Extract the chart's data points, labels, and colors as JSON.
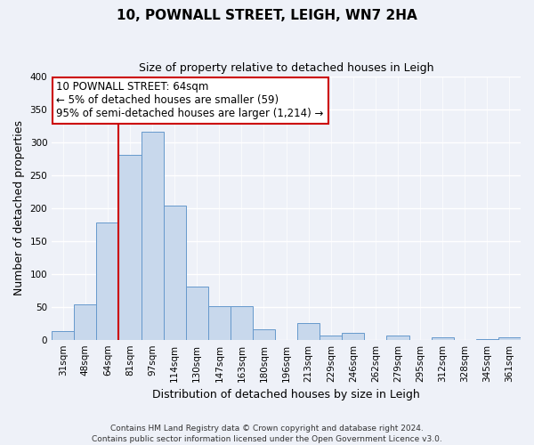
{
  "title": "10, POWNALL STREET, LEIGH, WN7 2HA",
  "subtitle": "Size of property relative to detached houses in Leigh",
  "xlabel": "Distribution of detached houses by size in Leigh",
  "ylabel": "Number of detached properties",
  "categories": [
    "31sqm",
    "48sqm",
    "64sqm",
    "81sqm",
    "97sqm",
    "114sqm",
    "130sqm",
    "147sqm",
    "163sqm",
    "180sqm",
    "196sqm",
    "213sqm",
    "229sqm",
    "246sqm",
    "262sqm",
    "279sqm",
    "295sqm",
    "312sqm",
    "328sqm",
    "345sqm",
    "361sqm"
  ],
  "values": [
    13,
    53,
    178,
    280,
    315,
    203,
    81,
    51,
    51,
    16,
    0,
    25,
    6,
    10,
    0,
    6,
    0,
    3,
    0,
    1,
    4
  ],
  "bar_color": "#c8d8ec",
  "bar_edge_color": "#6699cc",
  "highlight_index": 2,
  "highlight_color": "#cc0000",
  "ylim": [
    0,
    400
  ],
  "yticks": [
    0,
    50,
    100,
    150,
    200,
    250,
    300,
    350,
    400
  ],
  "annotation_box_text": "10 POWNALL STREET: 64sqm\n← 5% of detached houses are smaller (59)\n95% of semi-detached houses are larger (1,214) →",
  "footnote": "Contains HM Land Registry data © Crown copyright and database right 2024.\nContains public sector information licensed under the Open Government Licence v3.0.",
  "fig_width": 6.0,
  "fig_height": 5.0,
  "background_color": "#eef1f8",
  "grid_color": "#ffffff",
  "title_fontsize": 11,
  "subtitle_fontsize": 9,
  "axis_label_fontsize": 9,
  "tick_fontsize": 7.5,
  "annot_fontsize": 8.5,
  "footnote_fontsize": 6.5
}
